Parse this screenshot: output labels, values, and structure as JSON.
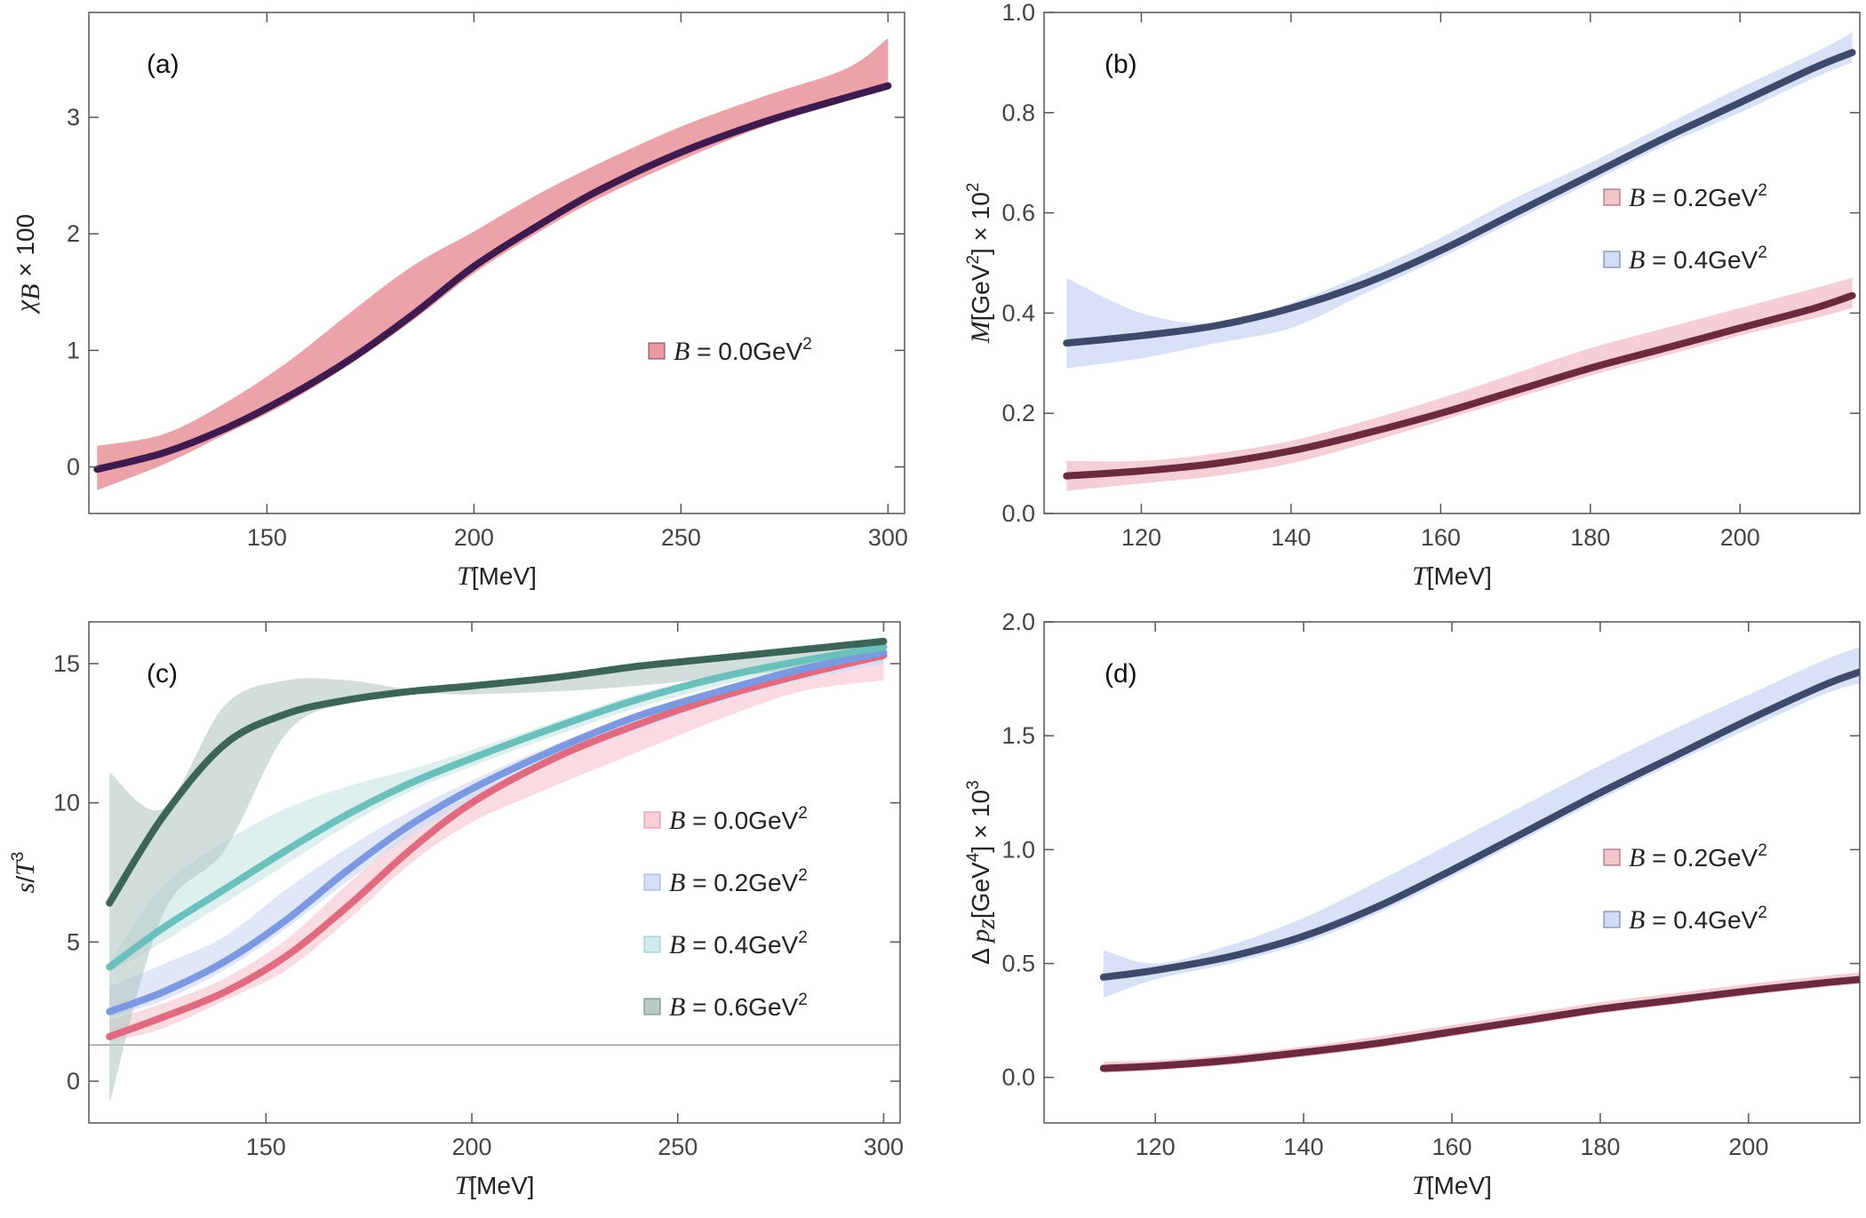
{
  "chart_data": [
    {
      "type": "line",
      "panel_label": "(a)",
      "xlabel": "T[MeV]",
      "ylabel": "χB × 100",
      "xlim": [
        107,
        304
      ],
      "ylim": [
        -0.4,
        3.9
      ],
      "xticks": [
        150,
        200,
        250,
        300
      ],
      "yticks": [
        0,
        1,
        2,
        3
      ],
      "legend_position": "center-right",
      "series": [
        {
          "name": "B = 0.0GeV2",
          "legend": {
            "var": "B",
            "eq": " = 0.0GeV",
            "sup": "2"
          },
          "line_color": "#3e1a4f",
          "band_color": "#e8939a",
          "band_opacity": 0.85,
          "x": [
            109,
            125,
            140,
            155,
            170,
            185,
            200,
            215,
            230,
            250,
            270,
            290,
            300
          ],
          "y": [
            -0.02,
            0.12,
            0.33,
            0.6,
            0.92,
            1.3,
            1.72,
            2.06,
            2.37,
            2.7,
            2.96,
            3.17,
            3.27
          ],
          "band_upper": [
            0.18,
            0.28,
            0.55,
            0.9,
            1.32,
            1.72,
            2.02,
            2.33,
            2.6,
            2.92,
            3.18,
            3.42,
            3.68
          ],
          "band_lower": [
            -0.2,
            0.02,
            0.28,
            0.55,
            0.88,
            1.25,
            1.66,
            2.0,
            2.3,
            2.63,
            2.92,
            3.14,
            3.24
          ]
        }
      ]
    },
    {
      "type": "line",
      "panel_label": "(b)",
      "xlabel": "T[MeV]",
      "ylabel": "M[GeV2] × 102",
      "xlim": [
        107,
        216
      ],
      "ylim": [
        0,
        1.0
      ],
      "xticks": [
        120,
        140,
        160,
        180,
        200
      ],
      "yticks": [
        0.0,
        0.2,
        0.4,
        0.6,
        0.8,
        1.0
      ],
      "legend_position": "right",
      "series": [
        {
          "name": "B = 0.2GeV2",
          "legend": {
            "var": "B",
            "eq": " = 0.2GeV",
            "sup": "2"
          },
          "line_color": "#6b2a3d",
          "band_color": "#f4c2ca",
          "band_opacity": 0.8,
          "x": [
            110,
            120,
            130,
            140,
            150,
            160,
            170,
            180,
            190,
            200,
            210,
            215
          ],
          "y": [
            0.075,
            0.085,
            0.1,
            0.125,
            0.16,
            0.2,
            0.245,
            0.29,
            0.33,
            0.37,
            0.41,
            0.435
          ],
          "band_upper": [
            0.105,
            0.105,
            0.12,
            0.145,
            0.185,
            0.23,
            0.28,
            0.33,
            0.37,
            0.41,
            0.45,
            0.47
          ],
          "band_lower": [
            0.045,
            0.06,
            0.075,
            0.1,
            0.14,
            0.185,
            0.23,
            0.275,
            0.315,
            0.355,
            0.39,
            0.41
          ]
        },
        {
          "name": "B = 0.4GeV2",
          "legend": {
            "var": "B",
            "eq": " = 0.4GeV",
            "sup": "2"
          },
          "line_color": "#3d4a6b",
          "band_color": "#d0daf5",
          "band_opacity": 0.8,
          "x": [
            110,
            120,
            130,
            140,
            150,
            160,
            170,
            180,
            190,
            200,
            210,
            215
          ],
          "y": [
            0.34,
            0.355,
            0.375,
            0.41,
            0.46,
            0.525,
            0.6,
            0.675,
            0.75,
            0.82,
            0.89,
            0.92
          ],
          "band_upper": [
            0.47,
            0.4,
            0.38,
            0.42,
            0.48,
            0.55,
            0.63,
            0.7,
            0.775,
            0.85,
            0.92,
            0.96
          ],
          "band_lower": [
            0.29,
            0.31,
            0.34,
            0.37,
            0.44,
            0.51,
            0.585,
            0.66,
            0.735,
            0.8,
            0.87,
            0.9
          ]
        }
      ]
    },
    {
      "type": "line",
      "panel_label": "(c)",
      "xlabel": "T[MeV]",
      "ylabel": "s/T3",
      "xlim": [
        107,
        304
      ],
      "ylim": [
        -1.5,
        16.5
      ],
      "xticks": [
        150,
        200,
        250,
        300
      ],
      "yticks": [
        0,
        5,
        10,
        15
      ],
      "reference_line": 1.3,
      "legend_position": "center-right",
      "series": [
        {
          "name": "B = 0.0GeV2",
          "legend": {
            "var": "B",
            "eq": " = 0.0GeV",
            "sup": "2"
          },
          "line_color": "#e06a80",
          "band_color": "#f7ccd4",
          "band_opacity": 0.7,
          "x": [
            112,
            125,
            140,
            155,
            170,
            185,
            200,
            220,
            240,
            260,
            280,
            300
          ],
          "y": [
            1.6,
            2.3,
            3.2,
            4.5,
            6.3,
            8.3,
            10.0,
            11.6,
            12.8,
            13.8,
            14.6,
            15.3
          ],
          "band_upper": [
            2.2,
            2.8,
            3.7,
            5.1,
            7.1,
            9.0,
            10.3,
            11.7,
            12.9,
            13.9,
            14.6,
            15.3
          ],
          "band_lower": [
            1.4,
            1.9,
            2.9,
            4.0,
            5.8,
            7.8,
            9.3,
            10.6,
            11.8,
            13.0,
            14.0,
            14.4
          ]
        },
        {
          "name": "B = 0.2GeV2",
          "legend": {
            "var": "B",
            "eq": " = 0.2GeV",
            "sup": "2"
          },
          "line_color": "#7b98e0",
          "band_color": "#d4dcf5",
          "band_opacity": 0.7,
          "x": [
            112,
            125,
            140,
            155,
            170,
            185,
            200,
            220,
            240,
            260,
            280,
            300
          ],
          "y": [
            2.5,
            3.2,
            4.3,
            5.8,
            7.6,
            9.2,
            10.5,
            11.9,
            13.1,
            14.0,
            14.8,
            15.4
          ],
          "band_upper": [
            3.4,
            4.2,
            5.2,
            6.9,
            8.4,
            9.7,
            10.8,
            12.1,
            13.2,
            14.1,
            14.8,
            15.4
          ],
          "band_lower": [
            2.3,
            2.9,
            4.0,
            5.5,
            7.2,
            8.8,
            10.1,
            11.5,
            12.6,
            13.6,
            14.4,
            15.0
          ]
        },
        {
          "name": "B = 0.4GeV2",
          "legend": {
            "var": "B",
            "eq": " = 0.4GeV",
            "sup": "2"
          },
          "line_color": "#6bbfbd",
          "band_color": "#cfeae7",
          "band_opacity": 0.7,
          "x": [
            112,
            125,
            140,
            155,
            170,
            185,
            200,
            220,
            240,
            260,
            280,
            300
          ],
          "y": [
            4.1,
            5.5,
            6.9,
            8.3,
            9.6,
            10.7,
            11.6,
            12.7,
            13.7,
            14.5,
            15.1,
            15.6
          ],
          "band_upper": [
            4.3,
            7.0,
            8.6,
            9.8,
            10.6,
            11.2,
            11.9,
            12.9,
            13.9,
            14.6,
            15.2,
            15.7
          ],
          "band_lower": [
            3.9,
            5.0,
            6.4,
            7.8,
            9.2,
            10.4,
            11.3,
            12.4,
            13.4,
            14.2,
            14.9,
            15.4
          ]
        },
        {
          "name": "B = 0.6GeV2",
          "legend": {
            "var": "B",
            "eq": " = 0.6GeV",
            "sup": "2"
          },
          "line_color": "#3d6459",
          "band_color": "#b4c8c4",
          "band_opacity": 0.6,
          "x": [
            112,
            125,
            140,
            155,
            170,
            185,
            200,
            220,
            240,
            260,
            280,
            300
          ],
          "y": [
            6.4,
            9.5,
            12.1,
            13.2,
            13.7,
            14.0,
            14.2,
            14.5,
            14.9,
            15.2,
            15.5,
            15.8
          ],
          "band_upper": [
            11.1,
            9.8,
            13.5,
            14.4,
            14.4,
            14.1,
            14.3,
            14.6,
            15.0,
            15.3,
            15.6,
            15.9
          ],
          "band_lower": [
            -0.8,
            6.0,
            8.3,
            12.5,
            13.6,
            13.9,
            13.9,
            14.0,
            14.2,
            14.5,
            14.8,
            15.1
          ]
        }
      ]
    },
    {
      "type": "line",
      "panel_label": "(d)",
      "xlabel": "T[MeV]",
      "ylabel": "Δpz[GeV4] × 103",
      "xlim": [
        105,
        215
      ],
      "ylim": [
        -0.2,
        2.0
      ],
      "xticks": [
        120,
        140,
        160,
        180,
        200
      ],
      "yticks": [
        0.0,
        0.5,
        1.0,
        1.5,
        2.0
      ],
      "legend_position": "right",
      "series": [
        {
          "name": "B = 0.2GeV2",
          "legend": {
            "var": "B",
            "eq": " = 0.2GeV",
            "sup": "2"
          },
          "line_color": "#6b2a3d",
          "band_color": "#f4c2ca",
          "band_opacity": 0.8,
          "x": [
            113,
            120,
            130,
            140,
            150,
            160,
            170,
            180,
            190,
            200,
            210,
            215
          ],
          "y": [
            0.04,
            0.05,
            0.075,
            0.11,
            0.15,
            0.2,
            0.25,
            0.3,
            0.34,
            0.38,
            0.415,
            0.43
          ],
          "band_upper": [
            0.07,
            0.075,
            0.1,
            0.135,
            0.18,
            0.23,
            0.28,
            0.33,
            0.37,
            0.41,
            0.445,
            0.46
          ],
          "band_lower": [
            0.02,
            0.03,
            0.055,
            0.09,
            0.13,
            0.18,
            0.23,
            0.28,
            0.32,
            0.36,
            0.395,
            0.41
          ]
        },
        {
          "name": "B = 0.4GeV2",
          "legend": {
            "var": "B",
            "eq": " = 0.4GeV",
            "sup": "2"
          },
          "line_color": "#3d4a6b",
          "band_color": "#d0daf5",
          "band_opacity": 0.8,
          "x": [
            113,
            120,
            130,
            140,
            150,
            160,
            170,
            180,
            190,
            200,
            210,
            215
          ],
          "y": [
            0.44,
            0.47,
            0.53,
            0.62,
            0.75,
            0.91,
            1.08,
            1.25,
            1.41,
            1.57,
            1.72,
            1.78
          ],
          "band_upper": [
            0.56,
            0.5,
            0.58,
            0.7,
            0.86,
            1.03,
            1.2,
            1.37,
            1.53,
            1.68,
            1.83,
            1.89
          ],
          "band_lower": [
            0.35,
            0.43,
            0.5,
            0.59,
            0.72,
            0.88,
            1.05,
            1.22,
            1.38,
            1.53,
            1.68,
            1.73
          ]
        }
      ]
    }
  ]
}
